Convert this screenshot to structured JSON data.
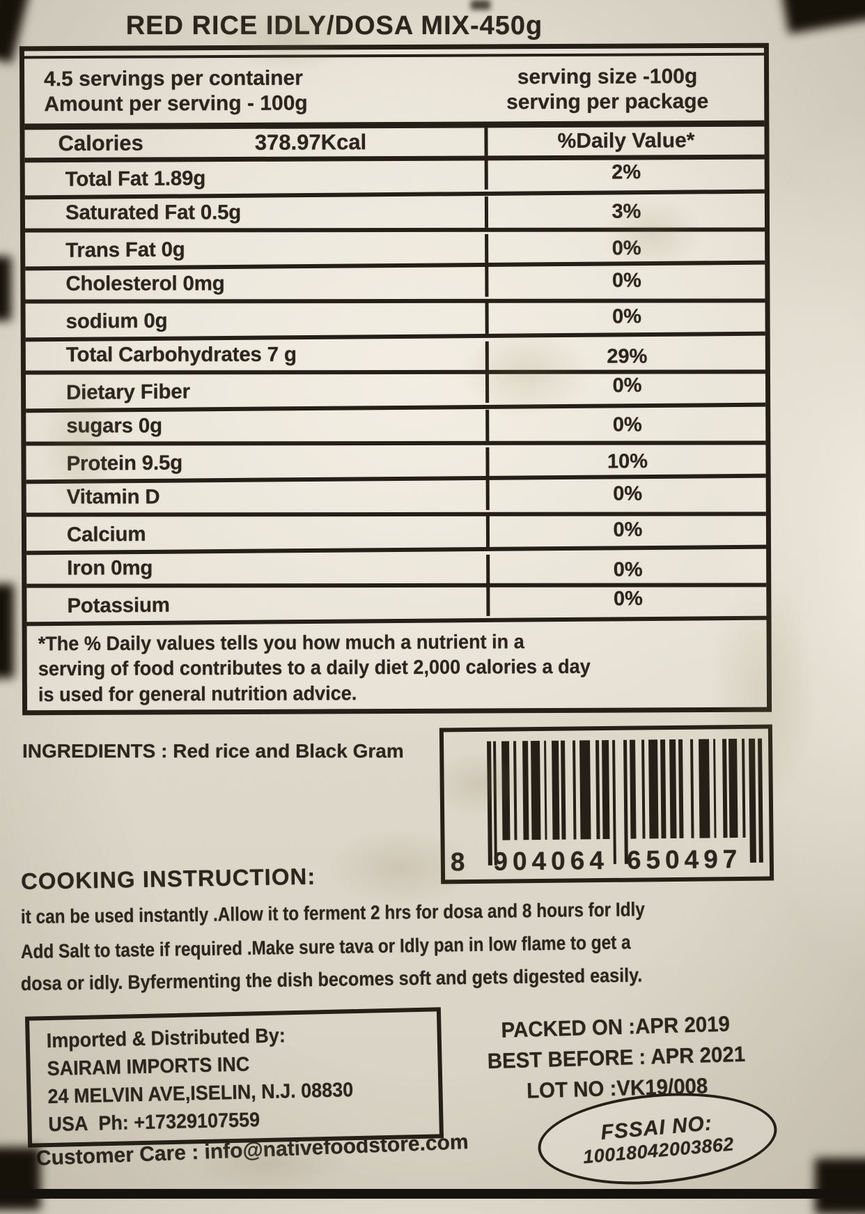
{
  "page": {
    "title": "RED RICE IDLY/DOSA MIX-450g"
  },
  "panel": {
    "servings_per_container": "4.5 servings per container",
    "amount_per_serving": "Amount per serving - 100g",
    "serving_size": "serving size -100g",
    "serving_per_package": "serving per package",
    "calories_label": "Calories",
    "calories_value": "378.97Kcal",
    "daily_value_header": "%Daily Value*",
    "rows": [
      {
        "label": "Total Fat 1.89g",
        "dv": "2%"
      },
      {
        "label": "Saturated Fat 0.5g",
        "dv": "3%"
      },
      {
        "label": "Trans Fat 0g",
        "dv": "0%"
      },
      {
        "label": "Cholesterol 0mg",
        "dv": "0%"
      },
      {
        "label": "sodium 0g",
        "dv": "0%"
      },
      {
        "label": "Total Carbohydrates 7 g",
        "dv": "29%"
      },
      {
        "label": "Dietary Fiber",
        "dv": "0%"
      },
      {
        "label": "sugars 0g",
        "dv": "0%"
      },
      {
        "label": "Protein 9.5g",
        "dv": "10%"
      },
      {
        "label": "Vitamin D",
        "dv": "0%"
      },
      {
        "label": "Calcium",
        "dv": "0%"
      },
      {
        "label": "Iron 0mg",
        "dv": "0%"
      },
      {
        "label": "Potassium",
        "dv": "0%"
      }
    ],
    "footnote_lines": [
      "*The % Daily values tells you how much a nutrient in a",
      "serving of food contributes to a daily diet 2,000 calories a day",
      "is used for general nutrition advice."
    ]
  },
  "ingredients": {
    "label": "INGREDIENTS :",
    "text": "Red rice and Black Gram"
  },
  "barcode": {
    "digit_groups": [
      "8",
      "904064",
      "650497"
    ]
  },
  "cooking": {
    "heading": "COOKING INSTRUCTION:",
    "lines": [
      "it can be used instantly .Allow it to ferment 2 hrs for dosa and 8 hours for Idly",
      "Add Salt to taste if required .Make sure tava or Idly pan in low flame to get a",
      "dosa or idly. Byfermenting the dish becomes soft and gets digested easily."
    ]
  },
  "distributor": {
    "lines": [
      "Imported & Distributed By:",
      "SAIRAM IMPORTS INC",
      "24 MELVIN AVE,ISELIN, N.J. 08830",
      "USA  Ph: +17329107559"
    ]
  },
  "pack_info": {
    "lines": [
      "PACKED ON :APR 2019",
      "BEST BEFORE : APR 2021",
      "LOT NO :VK19/008"
    ]
  },
  "fssai": {
    "title": "FSSAI NO:",
    "number": "10018042003862"
  },
  "customer_care": {
    "text": "Customer Care : info@nativefoodstore.com"
  },
  "colors": {
    "ink": "#2a251d",
    "paper": "#e6e1d4"
  }
}
